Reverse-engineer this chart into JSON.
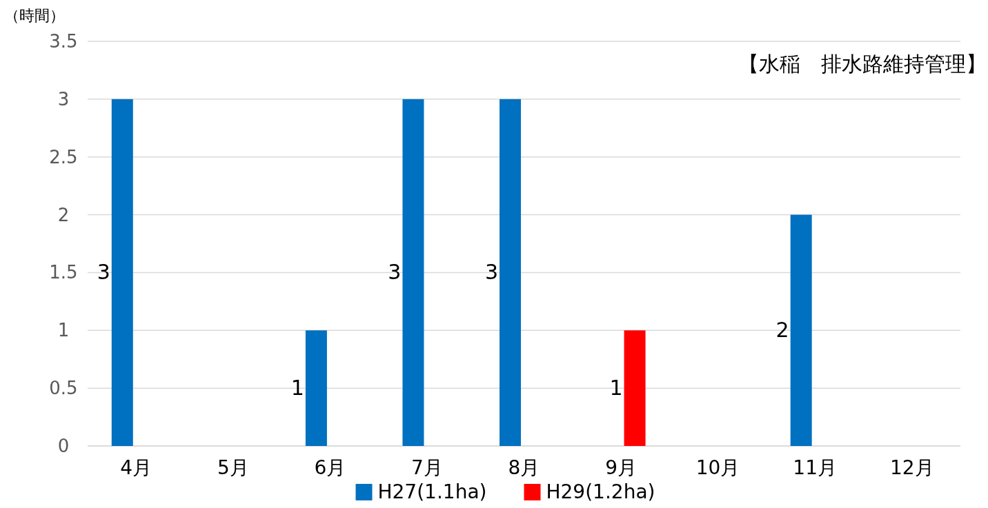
{
  "chart_data": {
    "type": "bar",
    "title": "【水稲　排水路維持管理】",
    "ylabel": "（時間）",
    "categories": [
      "4月",
      "5月",
      "6月",
      "7月",
      "8月",
      "9月",
      "10月",
      "11月",
      "12月"
    ],
    "series": [
      {
        "name": "H27(1.1ha)",
        "color": "#0070c0",
        "values": [
          3,
          null,
          1,
          3,
          3,
          null,
          null,
          2,
          null
        ]
      },
      {
        "name": "H29(1.2ha)",
        "color": "#ff0000",
        "values": [
          null,
          null,
          null,
          null,
          null,
          1,
          null,
          null,
          null
        ]
      }
    ],
    "ylim": [
      0,
      3.5
    ],
    "yticks": [
      0,
      0.5,
      1,
      1.5,
      2,
      2.5,
      3,
      3.5
    ],
    "grid": "y",
    "legend": "bottom",
    "data_labels": true
  }
}
